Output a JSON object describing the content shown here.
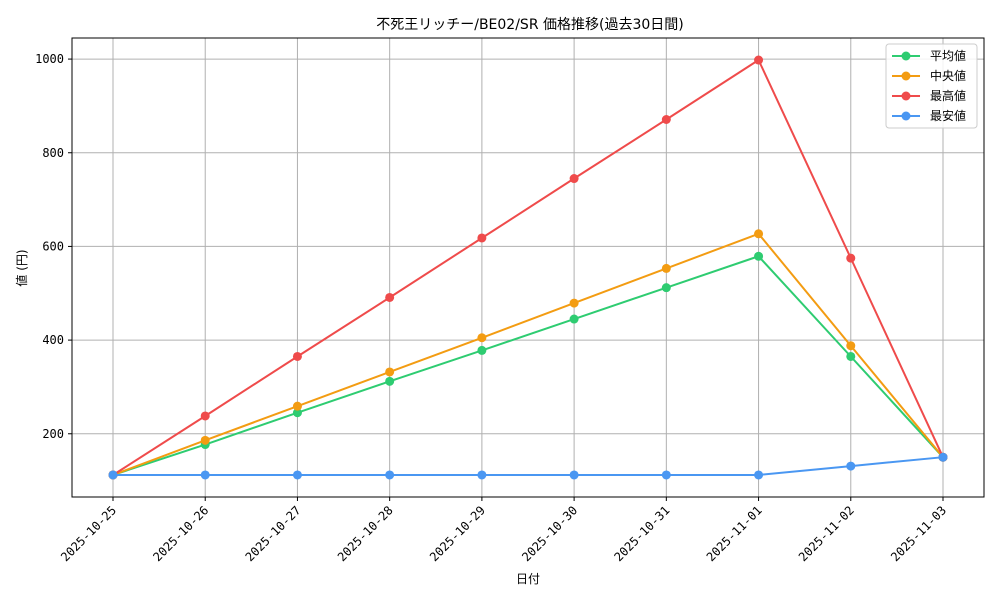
{
  "chart_data": {
    "type": "line",
    "title": "不死王リッチー/BE02/SR 価格推移(過去30日間)",
    "xlabel": "日付",
    "ylabel": "値 (円)",
    "categories": [
      "2025-10-25",
      "2025-10-26",
      "2025-10-27",
      "2025-10-28",
      "2025-10-29",
      "2025-10-30",
      "2025-10-31",
      "2025-11-01",
      "2025-11-02",
      "2025-11-03"
    ],
    "y_ticks": [
      200,
      400,
      600,
      800,
      1000
    ],
    "ylim": [
      65,
      1045
    ],
    "grid": true,
    "legend_position": "top-right",
    "series": [
      {
        "name": "平均値",
        "color": "#2ecc71",
        "values": [
          112,
          177,
          245,
          312,
          378,
          445,
          512,
          579,
          365,
          150
        ]
      },
      {
        "name": "中央値",
        "color": "#f39c12",
        "values": [
          112,
          186,
          259,
          332,
          405,
          479,
          553,
          627,
          388,
          150
        ]
      },
      {
        "name": "最高値",
        "color": "#ef4b4b",
        "values": [
          112,
          238,
          365,
          491,
          618,
          745,
          871,
          998,
          575,
          150
        ]
      },
      {
        "name": "最安値",
        "color": "#4a97f2",
        "values": [
          112,
          112,
          112,
          112,
          112,
          112,
          112,
          112,
          131,
          150
        ]
      }
    ]
  }
}
